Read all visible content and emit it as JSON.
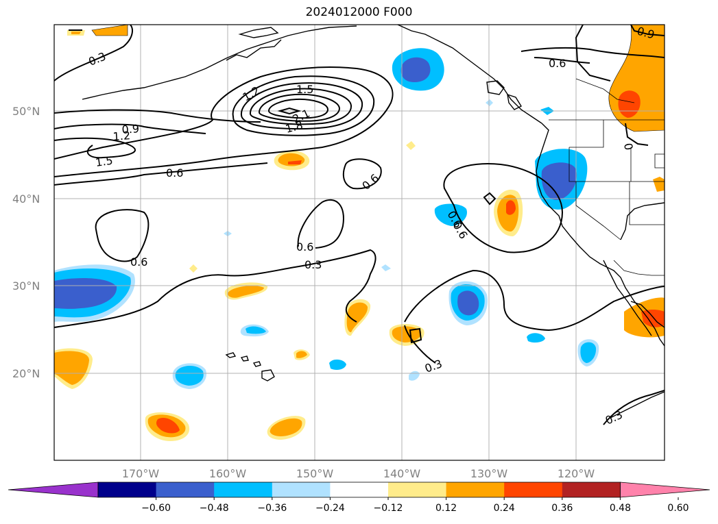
{
  "title": "2024012000 F000",
  "lat_labels": [
    "50°N",
    "40°N",
    "30°N",
    "20°N"
  ],
  "lon_labels": [
    "170°W",
    "160°W",
    "150°W",
    "140°W",
    "130°W",
    "120°W"
  ],
  "colorbar": {
    "colors": [
      "#9932cc",
      "#00008b",
      "#3a5fcd",
      "#00bfff",
      "#b0e2ff",
      "#ffffff",
      "#ffec8b",
      "#ffa500",
      "#ff4500",
      "#b22222",
      "#ff82ab"
    ],
    "ticks": [
      "−0.60",
      "−0.48",
      "−0.36",
      "−0.24",
      "−0.12",
      "0.12",
      "0.24",
      "0.36",
      "0.48",
      "0.60"
    ]
  },
  "contour_labels": [
    "0.3",
    "0.9",
    "1.2",
    "1.5",
    "0.6",
    "1.2",
    "1.5",
    "2.1",
    "1.8",
    "0.6",
    "0.6",
    "0.6",
    "0.3",
    "0.6",
    "0.6",
    "0.3",
    "0.3",
    "0.6",
    "0.9",
    "0"
  ]
}
